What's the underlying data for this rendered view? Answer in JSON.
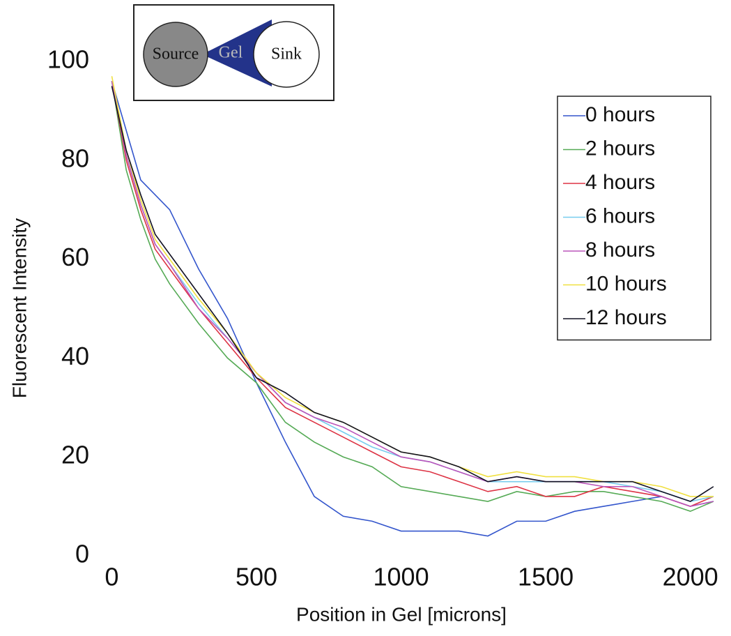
{
  "chart_data": {
    "type": "line",
    "xlabel": "Position in Gel [microns]",
    "ylabel": "Fluorescent Intensity",
    "inset": {
      "source": "Source",
      "gel": "Gel",
      "sink": "Sink"
    },
    "x": [
      0,
      50,
      100,
      150,
      200,
      300,
      400,
      500,
      600,
      700,
      800,
      900,
      1000,
      1100,
      1200,
      1300,
      1400,
      1500,
      1600,
      1700,
      1800,
      1900,
      2000,
      2080
    ],
    "series": [
      {
        "name": "0 hours",
        "color": "#3355cc",
        "values": [
          96,
          86,
          76,
          73,
          70,
          58,
          48,
          35,
          23,
          12,
          8,
          7,
          5,
          5,
          5,
          4,
          7,
          7,
          9,
          10,
          11,
          12,
          10,
          11
        ]
      },
      {
        "name": "2 hours",
        "color": "#55aa55",
        "values": [
          96,
          78,
          68,
          60,
          55,
          47,
          40,
          35,
          27,
          23,
          20,
          18,
          14,
          13,
          12,
          11,
          13,
          12,
          13,
          13,
          12,
          11,
          9,
          11
        ]
      },
      {
        "name": "4 hours",
        "color": "#dd3344",
        "values": [
          96,
          80,
          70,
          62,
          58,
          50,
          43,
          36,
          30,
          27,
          24,
          21,
          18,
          17,
          15,
          13,
          14,
          12,
          12,
          14,
          13,
          12,
          10,
          12
        ]
      },
      {
        "name": "6 hours",
        "color": "#77ccee",
        "values": [
          96,
          81,
          71,
          63,
          59,
          51,
          44,
          37,
          31,
          28,
          25,
          22,
          20,
          19,
          17,
          15,
          15,
          15,
          15,
          15,
          14,
          13,
          11,
          12
        ]
      },
      {
        "name": "8 hours",
        "color": "#bb55bb",
        "values": [
          96,
          81,
          71,
          63,
          59,
          50,
          44,
          37,
          31,
          28,
          26,
          23,
          20,
          19,
          17,
          15,
          16,
          15,
          15,
          14,
          14,
          12,
          10,
          11
        ]
      },
      {
        "name": "10 hours",
        "color": "#f0e040",
        "values": [
          97,
          82,
          72,
          64,
          60,
          52,
          45,
          37,
          32,
          29,
          27,
          24,
          21,
          20,
          18,
          16,
          17,
          16,
          16,
          15,
          15,
          14,
          12,
          12
        ]
      },
      {
        "name": "12 hours",
        "color": "#111122",
        "values": [
          95,
          82,
          73,
          65,
          61,
          53,
          45,
          36,
          33,
          29,
          27,
          24,
          21,
          20,
          18,
          15,
          16,
          15,
          15,
          15,
          15,
          13,
          11,
          14
        ]
      }
    ],
    "xlim": [
      -30,
      2090
    ],
    "xticks": [
      0,
      500,
      1000,
      1500,
      2000
    ],
    "ylim": [
      0,
      100
    ],
    "yticks": [
      0,
      20,
      40,
      60,
      80,
      100
    ],
    "legend": "upper-right"
  }
}
